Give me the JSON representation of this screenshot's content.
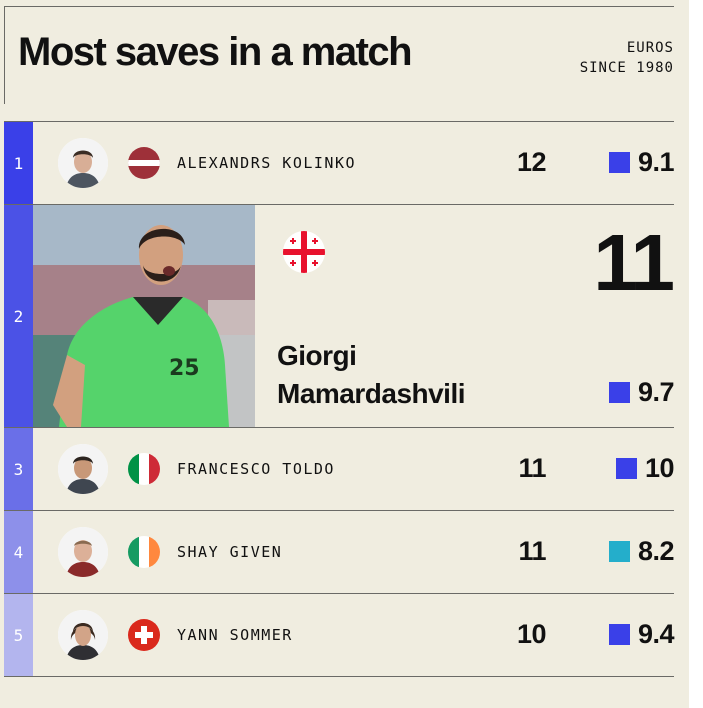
{
  "header": {
    "title": "Most saves in a match",
    "subtitle_line1": "EUROS",
    "subtitle_line2": "SINCE 1980"
  },
  "colors": {
    "background": "#f0ede0",
    "rank_colors": [
      "#3a40e8",
      "#4b52e6",
      "#6a6fe8",
      "#8d90ea",
      "#b3b5ee"
    ],
    "rating_blue": "#3a40e8",
    "rating_teal": "#24aecb"
  },
  "players": [
    {
      "rank": "1",
      "name": "ALEXANDRS KOLINKO",
      "country_flag": "latvia-flag-icon",
      "saves": "12",
      "rating": "9.1",
      "rating_color": "#3a40e8"
    },
    {
      "rank": "2",
      "first_name": "Giorgi",
      "last_name": "Mamardashvili",
      "country_flag": "georgia-flag-icon",
      "saves": "11",
      "rating": "9.7",
      "rating_color": "#3a40e8"
    },
    {
      "rank": "3",
      "name": "FRANCESCO TOLDO",
      "country_flag": "italy-flag-icon",
      "saves": "11",
      "rating": "10",
      "rating_color": "#3a40e8"
    },
    {
      "rank": "4",
      "name": "SHAY GIVEN",
      "country_flag": "ireland-flag-icon",
      "saves": "11",
      "rating": "8.2",
      "rating_color": "#24aecb"
    },
    {
      "rank": "5",
      "name": "YANN SOMMER",
      "country_flag": "switzerland-flag-icon",
      "saves": "10",
      "rating": "9.4",
      "rating_color": "#3a40e8"
    }
  ]
}
